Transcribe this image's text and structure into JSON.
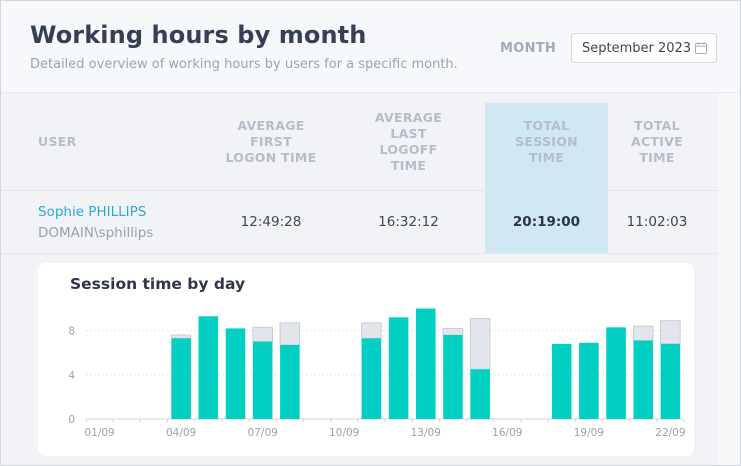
{
  "header": {
    "title": "Working hours by month",
    "subtitle": "Detailed overview of working hours by users for a specific month.",
    "month_label": "MONTH",
    "month_value": "September 2023"
  },
  "table": {
    "columns": [
      {
        "line1": "USER",
        "line2": "",
        "line3": "",
        "line4": ""
      },
      {
        "line1": "AVERAGE",
        "line2": "FIRST",
        "line3": "LOGON TIME",
        "line4": ""
      },
      {
        "line1": "AVERAGE",
        "line2": "LAST",
        "line3": "LOGOFF",
        "line4": "TIME"
      },
      {
        "line1": "TOTAL",
        "line2": "SESSION",
        "line3": "TIME",
        "line4": ""
      },
      {
        "line1": "TOTAL",
        "line2": "ACTIVE",
        "line3": "TIME",
        "line4": ""
      }
    ],
    "row": {
      "user_name": "Sophie PHILLIPS",
      "user_domain": "DOMAIN\\sphillips",
      "avg_first_logon": "12:49:28",
      "avg_last_logoff": "16:32:12",
      "total_session": "20:19:00",
      "total_active": "11:02:03"
    }
  },
  "chart_data": {
    "type": "bar",
    "title": "Session time by day",
    "categories": [
      "01/09",
      "02/09",
      "03/09",
      "04/09",
      "05/09",
      "06/09",
      "07/09",
      "08/09",
      "09/09",
      "10/09",
      "11/09",
      "12/09",
      "13/09",
      "14/09",
      "15/09",
      "16/09",
      "17/09",
      "18/09",
      "19/09",
      "20/09",
      "21/09",
      "22/09"
    ],
    "tick_labels": [
      "01/09",
      "04/09",
      "07/09",
      "10/09",
      "13/09",
      "16/09",
      "19/09",
      "22/09"
    ],
    "series": [
      {
        "values": [
          0,
          0,
          0,
          7.3,
          9.3,
          8.2,
          7.0,
          6.7,
          0,
          0,
          7.3,
          9.2,
          10.0,
          7.6,
          4.5,
          0,
          0,
          6.8,
          6.9,
          8.3,
          7.1,
          6.8
        ]
      },
      {
        "values": [
          0,
          0,
          0,
          0.3,
          0,
          0,
          1.3,
          2.0,
          0,
          0,
          1.4,
          0,
          0,
          0.6,
          4.6,
          0,
          0,
          0,
          0,
          0,
          1.3,
          2.1
        ]
      }
    ],
    "stacked": true,
    "y_ticks": [
      0,
      4,
      8
    ],
    "ylim": [
      0,
      10.5
    ],
    "colors": {
      "active": "#00cfc1",
      "idle": "#e3e5ec",
      "idle_border": "#c8ccd6"
    },
    "grid": true
  }
}
